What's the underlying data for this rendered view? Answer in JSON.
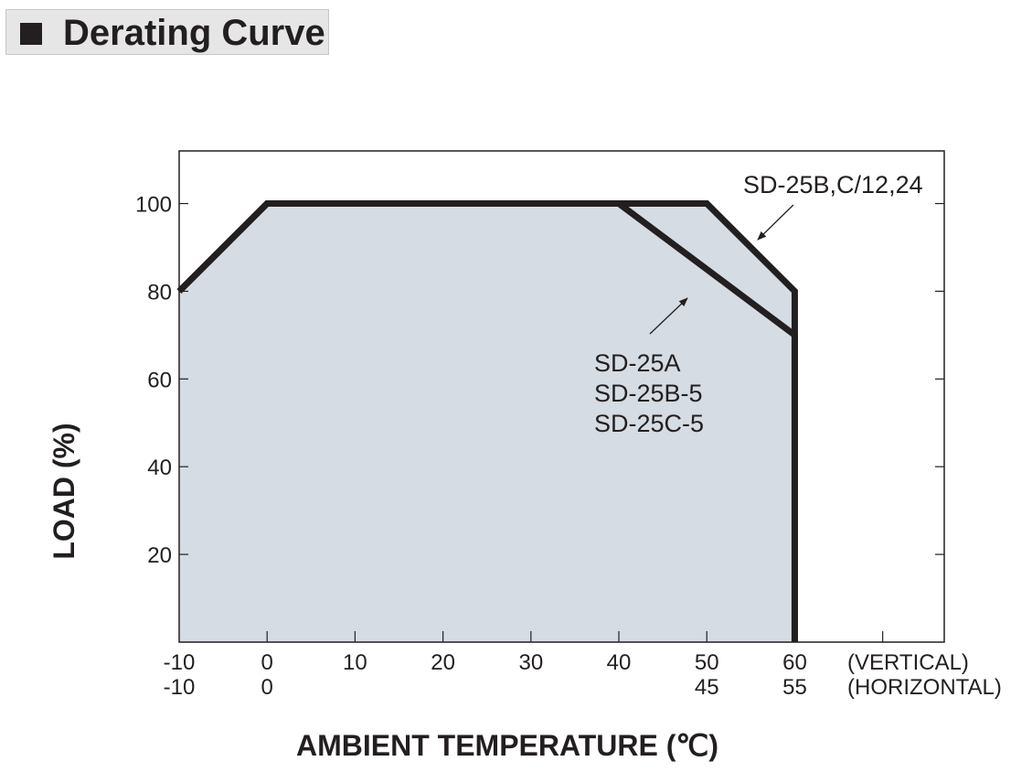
{
  "title": "Derating Curve",
  "colors": {
    "fill": "#d5dce3",
    "curve": "#231f20",
    "frame": "#231f20"
  },
  "chart_data": {
    "type": "area",
    "title": "Derating Curve",
    "xlabel": "AMBIENT TEMPERATURE (℃)",
    "ylabel": "LOAD (%)",
    "xlim": [
      -10,
      77
    ],
    "ylim": [
      0,
      112
    ],
    "x_ticks": [
      -10,
      0,
      10,
      20,
      30,
      40,
      50,
      60,
      70
    ],
    "y_ticks": [
      20,
      40,
      60,
      80,
      100
    ],
    "x_tick_rows": [
      {
        "name": "(VERTICAL)",
        "at": [
          -10,
          0,
          10,
          20,
          30,
          40,
          50,
          60
        ],
        "labels": [
          "-10",
          "0",
          "10",
          "20",
          "30",
          "40",
          "50",
          "60"
        ]
      },
      {
        "name": "(HORIZONTAL)",
        "at": [
          -10,
          0,
          50,
          60
        ],
        "labels": [
          "-10",
          "0",
          "45",
          "55"
        ]
      }
    ],
    "series": [
      {
        "name": "SD-25B,C/12,24",
        "x": [
          -10,
          0,
          50,
          60,
          60
        ],
        "y": [
          80,
          100,
          100,
          80,
          0
        ]
      },
      {
        "name": "SD-25A SD-25B-5 SD-25C-5",
        "x": [
          -10,
          0,
          40,
          60,
          60
        ],
        "y": [
          80,
          100,
          100,
          70,
          0
        ]
      }
    ],
    "annotations": [
      {
        "lines": [
          "SD-25B,C/12,24"
        ],
        "series": 0
      },
      {
        "lines": [
          "SD-25A",
          "SD-25B-5",
          "SD-25C-5"
        ],
        "series": 1
      }
    ],
    "grid": false
  }
}
